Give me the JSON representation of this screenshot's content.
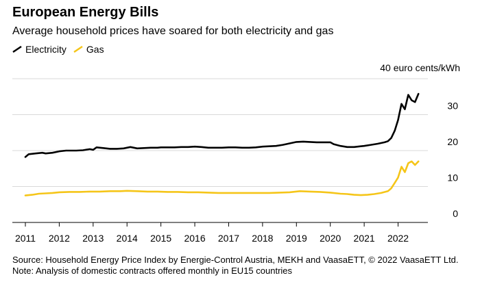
{
  "chart_data": {
    "type": "line",
    "title": "European Energy Bills",
    "subtitle": "Average household prices have soared for both electricity and gas",
    "unit_label": "40 euro cents/kWh",
    "x_ticks": [
      "2011",
      "2012",
      "2013",
      "2014",
      "2015",
      "2016",
      "2017",
      "2018",
      "2019",
      "2020",
      "2021",
      "2022"
    ],
    "xlim": [
      2011.0,
      2022.9
    ],
    "y_ticks": [
      0,
      10,
      20,
      30
    ],
    "ylim": [
      0,
      40
    ],
    "grid": "horizontal",
    "legend_position": "top-left",
    "series": [
      {
        "name": "Electricity",
        "color": "#000000",
        "x": [
          2011.0,
          2011.1,
          2011.3,
          2011.5,
          2011.6,
          2011.8,
          2012.0,
          2012.2,
          2012.5,
          2012.7,
          2012.9,
          2013.0,
          2013.1,
          2013.3,
          2013.5,
          2013.7,
          2013.9,
          2014.0,
          2014.1,
          2014.3,
          2014.5,
          2014.7,
          2014.9,
          2015.0,
          2015.2,
          2015.4,
          2015.6,
          2015.8,
          2016.0,
          2016.2,
          2016.4,
          2016.6,
          2016.8,
          2017.0,
          2017.2,
          2017.4,
          2017.6,
          2017.8,
          2018.0,
          2018.2,
          2018.4,
          2018.6,
          2018.8,
          2019.0,
          2019.2,
          2019.4,
          2019.6,
          2019.8,
          2020.0,
          2020.1,
          2020.3,
          2020.5,
          2020.7,
          2020.9,
          2021.0,
          2021.2,
          2021.4,
          2021.6,
          2021.7,
          2021.8,
          2021.9,
          2022.0,
          2022.1,
          2022.2,
          2022.3,
          2022.4,
          2022.5,
          2022.6
        ],
        "values": [
          18.2,
          19.0,
          19.2,
          19.4,
          19.2,
          19.4,
          19.8,
          20.0,
          20.0,
          20.1,
          20.4,
          20.2,
          20.9,
          20.7,
          20.5,
          20.5,
          20.6,
          20.8,
          21.0,
          20.6,
          20.7,
          20.8,
          20.8,
          20.9,
          20.9,
          20.9,
          21.0,
          21.0,
          21.1,
          21.0,
          20.8,
          20.8,
          20.8,
          20.9,
          20.9,
          20.8,
          20.8,
          20.9,
          21.1,
          21.2,
          21.3,
          21.6,
          22.0,
          22.4,
          22.5,
          22.4,
          22.3,
          22.3,
          22.3,
          21.8,
          21.3,
          21.0,
          21.0,
          21.2,
          21.3,
          21.6,
          21.9,
          22.3,
          22.6,
          23.5,
          25.5,
          28.5,
          33.0,
          31.5,
          35.5,
          34.0,
          33.5,
          35.8
        ]
      },
      {
        "name": "Gas",
        "color": "#f5c518",
        "x": [
          2011.0,
          2011.2,
          2011.4,
          2011.6,
          2011.8,
          2012.0,
          2012.3,
          2012.6,
          2012.9,
          2013.2,
          2013.5,
          2013.8,
          2014.0,
          2014.3,
          2014.6,
          2014.9,
          2015.2,
          2015.5,
          2015.8,
          2016.1,
          2016.4,
          2016.7,
          2017.0,
          2017.3,
          2017.6,
          2017.9,
          2018.2,
          2018.5,
          2018.8,
          2019.1,
          2019.4,
          2019.7,
          2020.0,
          2020.3,
          2020.5,
          2020.7,
          2020.9,
          2021.1,
          2021.3,
          2021.5,
          2021.7,
          2021.8,
          2021.9,
          2022.0,
          2022.1,
          2022.2,
          2022.3,
          2022.4,
          2022.5,
          2022.6
        ],
        "values": [
          7.5,
          7.7,
          8.0,
          8.1,
          8.2,
          8.4,
          8.5,
          8.5,
          8.6,
          8.6,
          8.7,
          8.7,
          8.8,
          8.7,
          8.6,
          8.6,
          8.5,
          8.5,
          8.4,
          8.4,
          8.3,
          8.2,
          8.2,
          8.2,
          8.2,
          8.2,
          8.2,
          8.3,
          8.4,
          8.7,
          8.6,
          8.5,
          8.3,
          8.0,
          7.9,
          7.7,
          7.6,
          7.7,
          7.9,
          8.2,
          8.7,
          9.5,
          11.0,
          12.5,
          15.5,
          14.0,
          16.5,
          17.0,
          16.0,
          17.0
        ]
      }
    ]
  },
  "source_text": "Source: Household Energy Price Index by Energie-Control Austria, MEKH and VaasaETT, © 2022 VaasaETT Ltd.",
  "note_text": "Note: Analysis of domestic contracts offered monthly in EU15 countries"
}
